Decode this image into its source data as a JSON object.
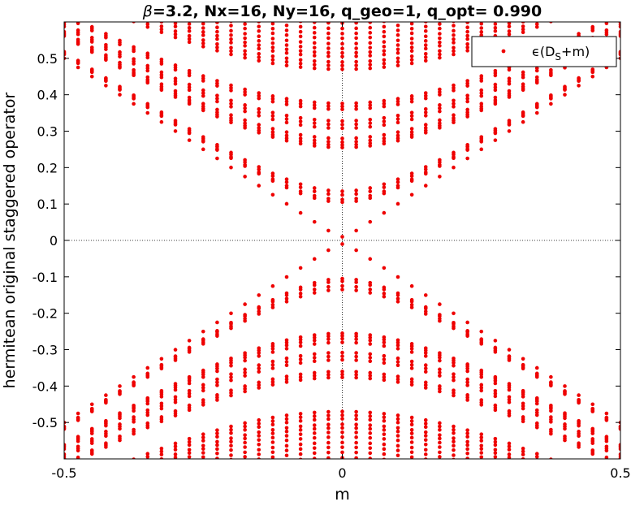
{
  "chart_data": {
    "type": "scatter",
    "title_greek": "β",
    "title_rest": "=3.2, Nx=16, Ny=16, q_geo=1, q_opt= 0.990",
    "xlabel": "m",
    "ylabel": "hermitean original staggered operator",
    "xlim": [
      -0.5,
      0.5
    ],
    "ylim": [
      -0.6,
      0.6
    ],
    "xticks": [
      -0.5,
      0,
      0.5
    ],
    "xtick_labels": [
      "-0.5",
      "0",
      "0.5"
    ],
    "yticks": [
      -0.5,
      -0.4,
      -0.3,
      -0.2,
      -0.1,
      0,
      0.1,
      0.2,
      0.3,
      0.4,
      0.5
    ],
    "ytick_labels": [
      "-0.5",
      "-0.4",
      "-0.3",
      "-0.2",
      "-0.1",
      "0",
      "0.1",
      "0.2",
      "0.3",
      "0.4",
      "0.5"
    ],
    "grid": "dotted zero lines only",
    "legend_position": "top-right",
    "marker_color": "#ee0000",
    "m_values": [
      -0.5,
      -0.475,
      -0.45,
      -0.425,
      -0.4,
      -0.375,
      -0.35,
      -0.325,
      -0.3,
      -0.275,
      -0.25,
      -0.225,
      -0.2,
      -0.175,
      -0.15,
      -0.125,
      -0.1,
      -0.075,
      -0.05,
      -0.025,
      0,
      0.025,
      0.05,
      0.075,
      0.1,
      0.125,
      0.15,
      0.175,
      0.2,
      0.225,
      0.25,
      0.275,
      0.3,
      0.325,
      0.35,
      0.375,
      0.4,
      0.425,
      0.45,
      0.475,
      0.5
    ],
    "series": [
      {
        "legend_greek": "ϵ",
        "legend_main": "(D",
        "legend_sub": "S",
        "legend_tail": "+m)",
        "band_offsets_at_m0": [
          0.01,
          0.105,
          0.112,
          0.125,
          0.135,
          0.255,
          0.262,
          0.27,
          0.28,
          0.308,
          0.318,
          0.328,
          0.36,
          0.368,
          0.376,
          0.47,
          0.48,
          0.49,
          0.505,
          0.515,
          0.527,
          0.54,
          0.555,
          0.568,
          0.582,
          0.597
        ]
      }
    ]
  }
}
